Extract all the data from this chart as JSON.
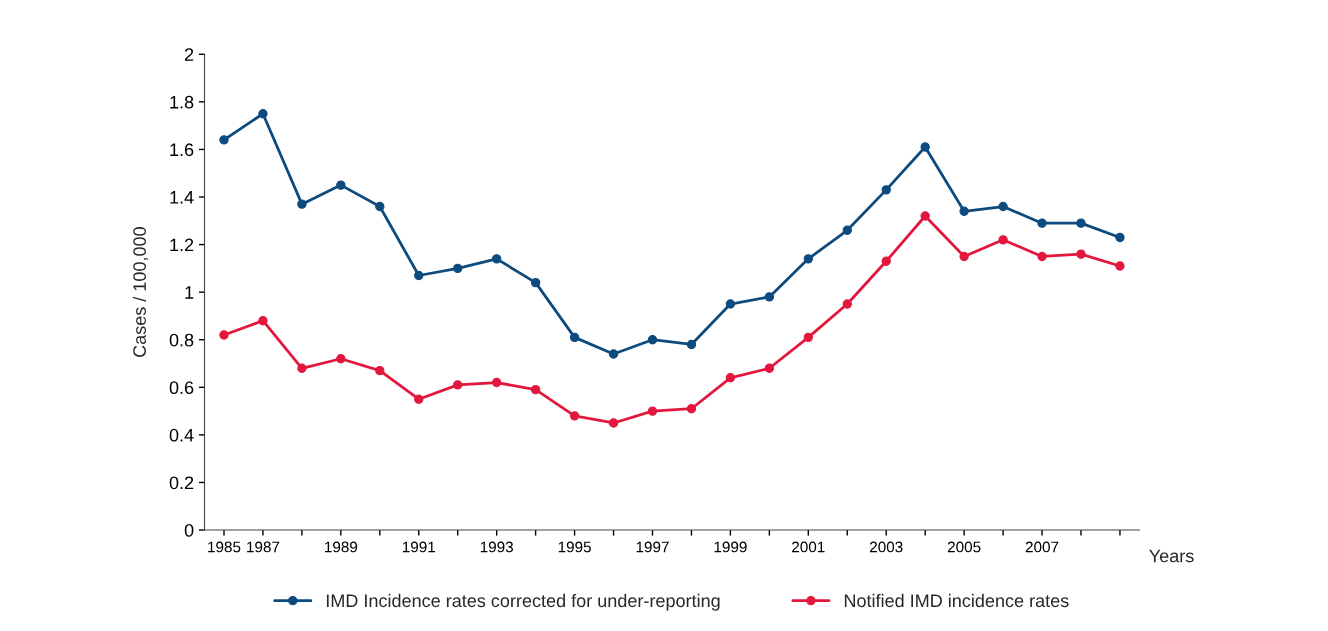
{
  "chart_data": {
    "type": "line",
    "ylabel": "Cases / 100,000",
    "xlabel": "Years",
    "categories": [
      "1985",
      "1987",
      null,
      "1989",
      null,
      "1991",
      null,
      "1993",
      null,
      "1995",
      null,
      "1997",
      null,
      "1999",
      null,
      "2001",
      null,
      "2003",
      null,
      "2005",
      null,
      "2007",
      null,
      null
    ],
    "series": [
      {
        "name": "IMD Incidence rates corrected for under-reporting",
        "color": "#0d4a7e",
        "values": [
          1.64,
          1.75,
          1.37,
          1.45,
          1.36,
          1.07,
          1.1,
          1.14,
          1.04,
          0.81,
          0.74,
          0.8,
          0.78,
          0.95,
          0.98,
          1.14,
          1.26,
          1.43,
          1.61,
          1.34,
          1.36,
          1.29,
          1.29,
          1.23
        ]
      },
      {
        "name": "Notified IMD incidence rates",
        "color": "#e3173e",
        "values": [
          0.82,
          0.88,
          0.68,
          0.72,
          0.67,
          0.55,
          0.61,
          0.62,
          0.59,
          0.48,
          0.45,
          0.5,
          0.51,
          0.64,
          0.68,
          0.81,
          0.95,
          1.13,
          1.32,
          1.15,
          1.22,
          1.15,
          1.16,
          1.11
        ]
      }
    ],
    "ylim": [
      0,
      2
    ],
    "yticks": [
      0,
      0.2,
      0.4,
      0.6,
      0.8,
      1,
      1.2,
      1.4,
      1.6,
      1.8,
      2
    ],
    "marker": "circle",
    "line_style": "solid",
    "grid": false,
    "legend": "bottom"
  }
}
